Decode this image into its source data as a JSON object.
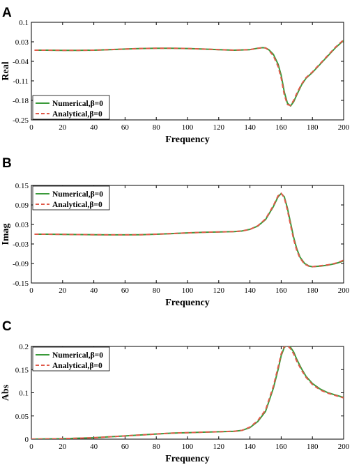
{
  "chart_data": [
    {
      "panel": "A",
      "type": "line",
      "xlabel": "Frequency",
      "ylabel": "Real",
      "xlim": [
        0,
        200
      ],
      "ylim": [
        -0.25,
        0.1
      ],
      "xticks": [
        "0",
        "20",
        "40",
        "60",
        "80",
        "100",
        "120",
        "140",
        "160",
        "180",
        "200"
      ],
      "yticks": [
        "-0.25",
        "-0.18",
        "-0.11",
        "-0.04",
        "0.03",
        "0.1"
      ],
      "grid": false,
      "legend": "bottom-left",
      "series": [
        {
          "name": "Numerical,β=0",
          "color": "#3a9a3a",
          "style": "solid",
          "x": [
            2,
            10,
            20,
            30,
            40,
            50,
            60,
            70,
            80,
            90,
            100,
            110,
            120,
            130,
            140,
            145,
            148,
            150,
            152,
            155,
            158,
            160,
            162,
            164,
            166,
            168,
            170,
            173,
            176,
            180,
            185,
            190,
            195,
            200
          ],
          "y": [
            0.0,
            0.0,
            -0.0005,
            -0.0005,
            0.0,
            0.002,
            0.004,
            0.006,
            0.007,
            0.007,
            0.006,
            0.004,
            0.002,
            0.0,
            0.002,
            0.007,
            0.009,
            0.008,
            0.002,
            -0.015,
            -0.05,
            -0.09,
            -0.15,
            -0.19,
            -0.2,
            -0.185,
            -0.16,
            -0.125,
            -0.1,
            -0.08,
            -0.05,
            -0.02,
            0.01,
            0.035
          ]
        },
        {
          "name": "Analytical,β=0",
          "color": "#e05a4a",
          "style": "dashed",
          "x": [
            2,
            10,
            20,
            30,
            40,
            50,
            60,
            70,
            80,
            90,
            100,
            110,
            120,
            130,
            140,
            145,
            148,
            150,
            152,
            155,
            158,
            160,
            162,
            164,
            166,
            168,
            170,
            173,
            176,
            180,
            185,
            190,
            195,
            200
          ],
          "y": [
            0.0,
            0.0,
            -0.0005,
            -0.0005,
            0.0,
            0.002,
            0.004,
            0.006,
            0.007,
            0.007,
            0.006,
            0.004,
            0.002,
            0.0,
            0.002,
            0.007,
            0.009,
            0.008,
            0.0,
            -0.02,
            -0.058,
            -0.1,
            -0.16,
            -0.195,
            -0.198,
            -0.18,
            -0.155,
            -0.122,
            -0.098,
            -0.078,
            -0.048,
            -0.018,
            0.012,
            0.037
          ]
        }
      ]
    },
    {
      "panel": "B",
      "type": "line",
      "xlabel": "Frequency",
      "ylabel": "Imag",
      "xlim": [
        0,
        200
      ],
      "ylim": [
        -0.15,
        0.15
      ],
      "xticks": [
        "0",
        "20",
        "40",
        "60",
        "80",
        "100",
        "120",
        "140",
        "160",
        "180",
        "200"
      ],
      "yticks": [
        "-0.15",
        "-0.09",
        "-0.03",
        "0.03",
        "0.09",
        "0.15"
      ],
      "grid": false,
      "legend": "top-left",
      "series": [
        {
          "name": "Numerical,β=0",
          "color": "#3a9a3a",
          "style": "solid",
          "x": [
            2,
            10,
            20,
            30,
            40,
            50,
            60,
            70,
            80,
            90,
            100,
            110,
            120,
            130,
            135,
            140,
            145,
            150,
            155,
            158,
            160,
            162,
            164,
            166,
            168,
            170,
            172,
            175,
            178,
            180,
            185,
            190,
            195,
            200
          ],
          "y": [
            0.0,
            0.0,
            -0.0005,
            -0.001,
            -0.0015,
            -0.002,
            -0.002,
            -0.0015,
            0.0,
            0.002,
            0.004,
            0.006,
            0.007,
            0.008,
            0.01,
            0.015,
            0.025,
            0.045,
            0.085,
            0.115,
            0.125,
            0.115,
            0.08,
            0.035,
            -0.01,
            -0.045,
            -0.07,
            -0.09,
            -0.098,
            -0.1,
            -0.098,
            -0.095,
            -0.09,
            -0.082
          ]
        },
        {
          "name": "Analytical,β=0",
          "color": "#e05a4a",
          "style": "dashed",
          "x": [
            2,
            10,
            20,
            30,
            40,
            50,
            60,
            70,
            80,
            90,
            100,
            110,
            120,
            130,
            135,
            140,
            145,
            150,
            155,
            158,
            160,
            162,
            164,
            166,
            168,
            170,
            172,
            175,
            178,
            180,
            185,
            190,
            195,
            200
          ],
          "y": [
            0.0,
            0.0,
            -0.0005,
            -0.001,
            -0.0015,
            -0.002,
            -0.002,
            -0.0015,
            0.0,
            0.002,
            0.004,
            0.006,
            0.007,
            0.008,
            0.01,
            0.015,
            0.026,
            0.047,
            0.088,
            0.118,
            0.126,
            0.112,
            0.074,
            0.028,
            -0.016,
            -0.05,
            -0.073,
            -0.092,
            -0.099,
            -0.1,
            -0.097,
            -0.094,
            -0.089,
            -0.08
          ]
        }
      ]
    },
    {
      "panel": "C",
      "type": "line",
      "xlabel": "Frequency",
      "ylabel": "Abs",
      "xlim": [
        0,
        200
      ],
      "ylim": [
        0,
        0.2
      ],
      "xticks": [
        "0",
        "20",
        "40",
        "60",
        "80",
        "100",
        "120",
        "140",
        "160",
        "180",
        "200"
      ],
      "yticks": [
        "0",
        "0.05",
        "0.1",
        "0.15",
        "0.2"
      ],
      "grid": false,
      "legend": "top-left",
      "series": [
        {
          "name": "Numerical,β=0",
          "color": "#3a9a3a",
          "style": "solid",
          "x": [
            0,
            10,
            20,
            30,
            40,
            50,
            60,
            70,
            80,
            90,
            100,
            110,
            120,
            130,
            135,
            140,
            145,
            150,
            155,
            158,
            160,
            162,
            164,
            166,
            168,
            170,
            173,
            176,
            180,
            185,
            190,
            195,
            200
          ],
          "y": [
            0.0,
            0.0005,
            0.001,
            0.002,
            0.003,
            0.005,
            0.007,
            0.009,
            0.011,
            0.013,
            0.014,
            0.015,
            0.016,
            0.017,
            0.019,
            0.025,
            0.038,
            0.06,
            0.11,
            0.15,
            0.18,
            0.198,
            0.203,
            0.198,
            0.188,
            0.172,
            0.152,
            0.135,
            0.12,
            0.108,
            0.1,
            0.095,
            0.09
          ]
        },
        {
          "name": "Analytical,β=0",
          "color": "#e05a4a",
          "style": "dashed",
          "x": [
            0,
            10,
            20,
            30,
            40,
            50,
            60,
            70,
            80,
            90,
            100,
            110,
            120,
            130,
            135,
            140,
            145,
            150,
            155,
            158,
            160,
            162,
            164,
            166,
            168,
            170,
            173,
            176,
            180,
            185,
            190,
            195,
            200
          ],
          "y": [
            0.0,
            0.0005,
            0.001,
            0.002,
            0.003,
            0.005,
            0.007,
            0.009,
            0.011,
            0.013,
            0.014,
            0.015,
            0.016,
            0.017,
            0.019,
            0.026,
            0.04,
            0.063,
            0.114,
            0.155,
            0.184,
            0.2,
            0.202,
            0.195,
            0.184,
            0.168,
            0.149,
            0.133,
            0.118,
            0.106,
            0.099,
            0.094,
            0.089
          ]
        }
      ]
    }
  ]
}
